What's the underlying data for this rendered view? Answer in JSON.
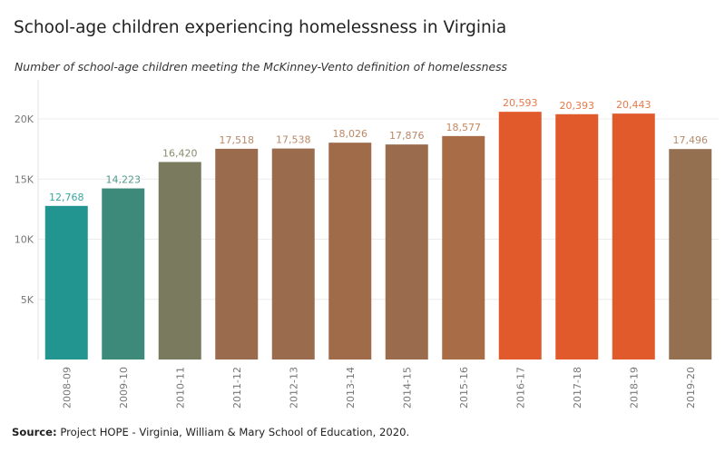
{
  "title": "School-age children experiencing homelessness in Virginia",
  "subtitle": "Number of school-age children meeting the McKinney-Vento definition of homelessness",
  "source": {
    "label": "Source:",
    "text": " Project HOPE - Virginia, William & Mary School of Education, 2020."
  },
  "chart_data": {
    "type": "bar",
    "categories": [
      "2008-09",
      "2009-10",
      "2010-11",
      "2011-12",
      "2012-13",
      "2013-14",
      "2014-15",
      "2015-16",
      "2016-17",
      "2017-18",
      "2018-19",
      "2019-20"
    ],
    "values": [
      12768,
      14223,
      16420,
      17518,
      17538,
      18026,
      17876,
      18577,
      20593,
      20393,
      20443,
      17496
    ],
    "value_labels": [
      "12,768",
      "14,223",
      "16,420",
      "17,518",
      "17,538",
      "18,026",
      "17,876",
      "18,577",
      "20,593",
      "20,393",
      "20,443",
      "17,496"
    ],
    "bar_colors": [
      "#229590",
      "#3e8a7a",
      "#7a7a5e",
      "#9a6b4c",
      "#9a6b4c",
      "#a06b48",
      "#9a6b4c",
      "#a86c46",
      "#e05a2b",
      "#e05a2b",
      "#e05a2b",
      "#957050"
    ],
    "label_colors": [
      "#3aa79f",
      "#4f9a8b",
      "#8a8a6e",
      "#b9896a",
      "#b9896a",
      "#bd8764",
      "#b9896a",
      "#c7865f",
      "#e8794a",
      "#e8794a",
      "#e8794a",
      "#b58d6d"
    ],
    "y_ticks": [
      5000,
      10000,
      15000,
      20000
    ],
    "y_tick_labels": [
      "5K",
      "10K",
      "15K",
      "20K"
    ],
    "ylim": [
      0,
      22500
    ],
    "grid": true
  }
}
